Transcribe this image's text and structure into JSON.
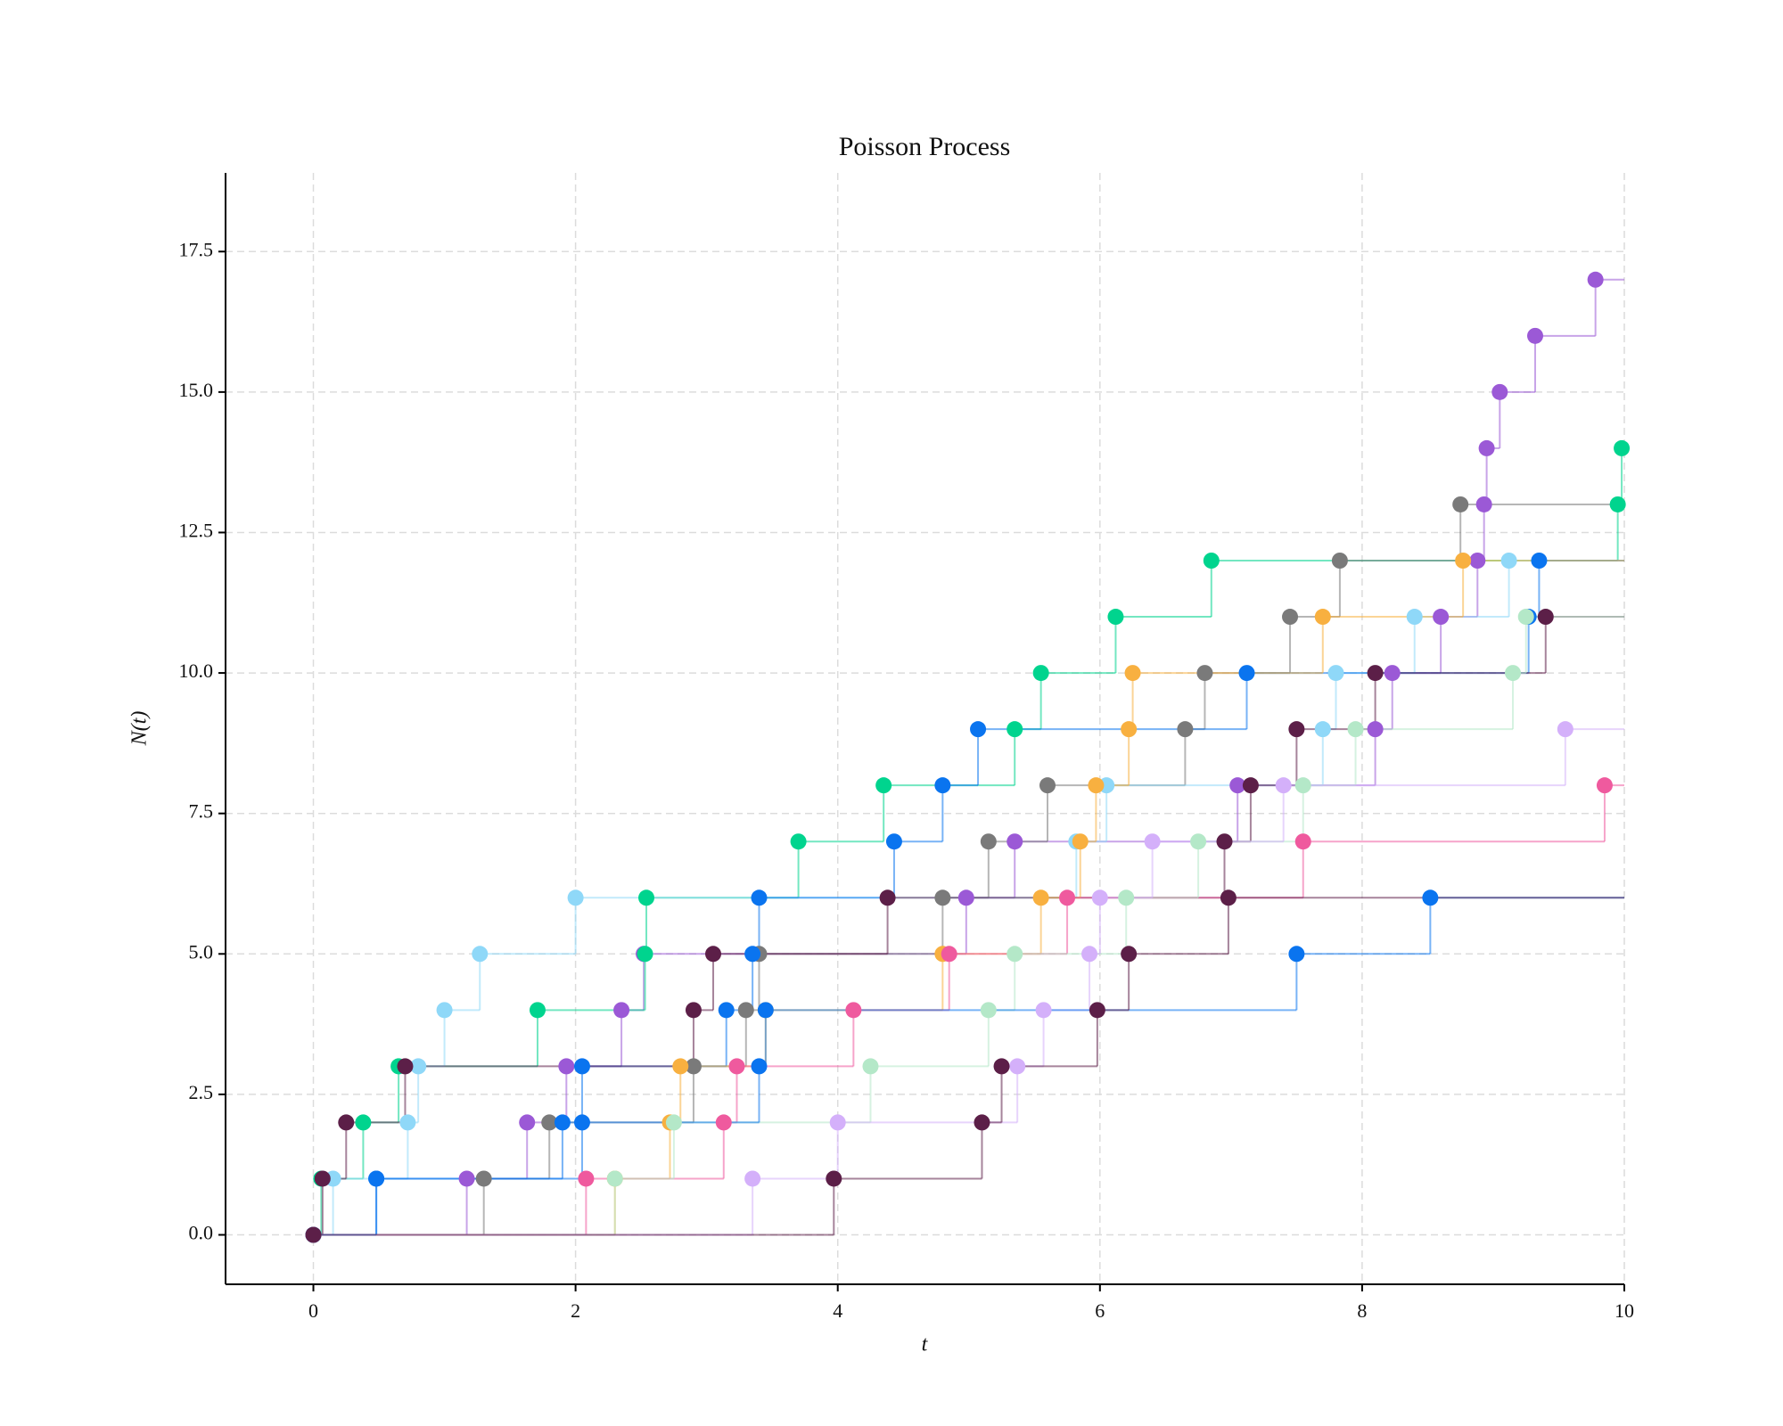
{
  "chart_data": {
    "type": "step",
    "title": "Poisson Process",
    "x_label": "t",
    "y_label": "N(t)",
    "xlim": [
      -0.67,
      10
    ],
    "ylim": [
      -0.88,
      18.9
    ],
    "xticks": [
      0,
      2,
      4,
      6,
      8,
      10
    ],
    "yticks": [
      {
        "value": 0,
        "label": "0.0"
      },
      2.5,
      {
        "value": 5,
        "label": "5.0"
      },
      7.5,
      {
        "value": 10,
        "label": "10.0"
      },
      12.5,
      {
        "value": 15,
        "label": "15.0"
      },
      17.5
    ],
    "grid": true,
    "series": [
      {
        "color": "#9b59d6",
        "x": [
          0,
          1.17,
          1.63,
          1.93,
          2.35,
          2.52,
          4.98,
          5.35,
          7.05,
          8.1,
          8.23,
          8.6,
          8.88,
          8.93,
          8.95,
          9.05,
          9.32,
          9.78
        ],
        "values": [
          0,
          1,
          2,
          3,
          4,
          5,
          6,
          7,
          8,
          9,
          10,
          11,
          12,
          13,
          14,
          15,
          16,
          17
        ]
      },
      {
        "color": "#00d48e",
        "x": [
          0,
          0.06,
          0.38,
          0.65,
          1.71,
          2.53,
          2.54,
          3.7,
          4.35,
          5.35,
          5.55,
          6.12,
          6.85,
          9.95,
          9.98
        ],
        "values": [
          0,
          1,
          2,
          3,
          4,
          5,
          6,
          7,
          8,
          9,
          10,
          11,
          12,
          13,
          14
        ]
      },
      {
        "color": "#7a7a7a",
        "x": [
          0,
          1.3,
          1.8,
          2.9,
          3.3,
          3.4,
          4.8,
          5.15,
          5.6,
          6.65,
          6.8,
          7.45,
          7.83,
          8.75
        ],
        "values": [
          0,
          1,
          2,
          3,
          4,
          5,
          6,
          7,
          8,
          9,
          10,
          11,
          12,
          13
        ]
      },
      {
        "color": "#8fd8f8",
        "x": [
          0,
          0.15,
          0.72,
          0.8,
          1.0,
          1.27,
          2.0,
          5.82,
          6.05,
          7.7,
          7.8,
          8.4,
          9.12
        ],
        "values": [
          0,
          1,
          2,
          3,
          4,
          5,
          6,
          7,
          8,
          9,
          10,
          11,
          12
        ]
      },
      {
        "color": "#0a74ef",
        "x": [
          0,
          0.48,
          1.9,
          2.05,
          3.15,
          3.35,
          3.4,
          4.43,
          4.8,
          5.07,
          7.12,
          9.27,
          9.35
        ],
        "values": [
          0,
          1,
          2,
          3,
          4,
          5,
          6,
          7,
          8,
          9,
          10,
          11,
          12
        ]
      },
      {
        "color": "#5c1f48",
        "x": [
          0,
          0.07,
          0.25,
          0.7,
          2.9,
          3.05,
          4.38,
          6.95,
          7.15,
          7.5,
          8.1,
          9.4
        ],
        "values": [
          0,
          1,
          2,
          3,
          4,
          5,
          6,
          7,
          8,
          9,
          10,
          11
        ]
      },
      {
        "color": "#f8b040",
        "x": [
          0,
          2.3,
          2.72,
          2.8,
          3.45,
          4.8,
          5.55,
          5.85,
          5.97,
          6.22,
          6.25,
          7.7,
          8.77
        ],
        "values": [
          0,
          1,
          2,
          3,
          4,
          5,
          6,
          7,
          8,
          9,
          10,
          11,
          12
        ]
      },
      {
        "color": "#ef5a9e",
        "x": [
          0,
          2.08,
          3.13,
          3.23,
          4.12,
          4.85,
          5.75,
          7.55,
          9.85
        ],
        "values": [
          0,
          1,
          2,
          3,
          4,
          5,
          6,
          7,
          8
        ]
      },
      {
        "color": "#b4e8c8",
        "x": [
          0,
          2.3,
          2.75,
          4.25,
          5.15,
          5.35,
          6.2,
          6.75,
          7.55,
          7.95,
          9.15,
          9.25
        ],
        "values": [
          0,
          1,
          2,
          3,
          4,
          5,
          6,
          7,
          8,
          9,
          10,
          11
        ]
      },
      {
        "color": "#d4b0fa",
        "x": [
          0,
          3.35,
          4.0,
          5.37,
          5.57,
          5.92,
          6.0,
          6.4,
          7.4,
          9.55
        ],
        "values": [
          0,
          1,
          2,
          3,
          4,
          5,
          6,
          7,
          8,
          9
        ]
      },
      {
        "color": "#0a74ef",
        "x": [
          0,
          0.48,
          2.05,
          3.4,
          3.45,
          7.5,
          8.52
        ],
        "values": [
          0,
          1,
          2,
          3,
          4,
          5,
          6
        ]
      },
      {
        "color": "#5c1f48",
        "x": [
          0,
          3.97,
          5.1,
          5.25,
          5.98,
          6.22,
          6.98
        ],
        "values": [
          0,
          1,
          2,
          3,
          4,
          5,
          6
        ]
      }
    ]
  }
}
